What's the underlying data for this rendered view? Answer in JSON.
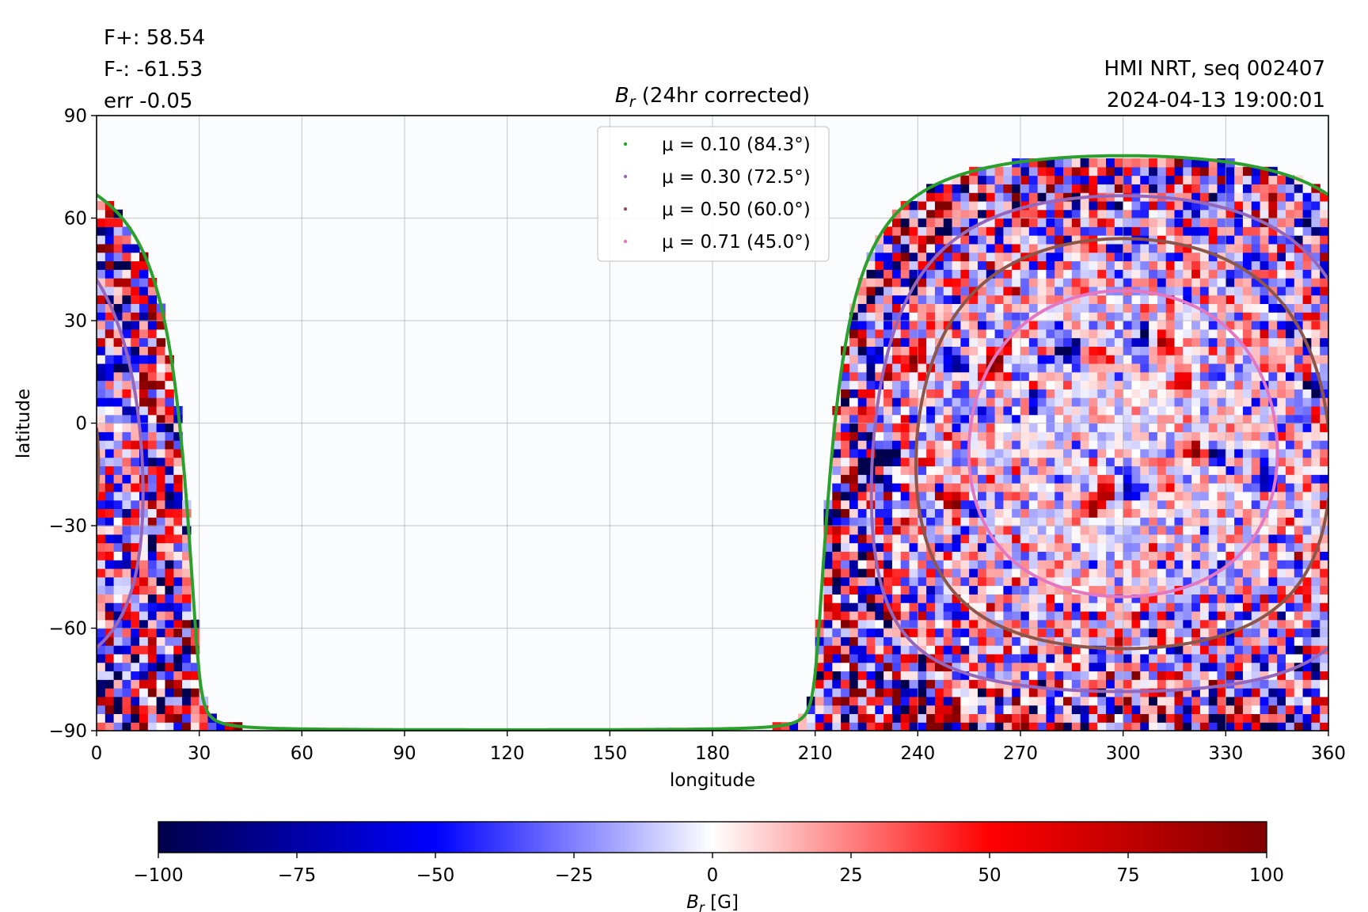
{
  "stats": {
    "f_plus": "F+: 58.54",
    "f_minus": "F-: -61.53",
    "err": "err -0.05"
  },
  "source": {
    "instrument": "HMI NRT, seq 002407",
    "timestamp": "2024-04-13 19:00:01"
  },
  "chart_data": {
    "type": "heatmap",
    "title_symbol": "B",
    "title_sub": "r",
    "title_rest": " (24hr corrected)",
    "xlabel": "longitude",
    "ylabel": "latitude",
    "xlim": [
      0,
      360
    ],
    "ylim": [
      -90,
      90
    ],
    "xticks": [
      0,
      30,
      60,
      90,
      120,
      150,
      180,
      210,
      240,
      270,
      300,
      330,
      360
    ],
    "yticks": [
      -90,
      -60,
      -30,
      0,
      30,
      60,
      90
    ],
    "xtick_labels": [
      "0",
      "30",
      "60",
      "90",
      "120",
      "150",
      "180",
      "210",
      "240",
      "270",
      "300",
      "330",
      "360"
    ],
    "ytick_labels": [
      "−90",
      "−60",
      "−30",
      "0",
      "30",
      "60",
      "90"
    ],
    "grid": true,
    "legend_position": "top-center",
    "disk_center_longitude": 300,
    "disk_center_latitude": -6,
    "contours": [
      {
        "label": "μ = 0.10 (84.3°)",
        "mu": 0.1,
        "angle_deg": 84.3,
        "color": "#2ca02c"
      },
      {
        "label": "μ = 0.30 (72.5°)",
        "mu": 0.3,
        "angle_deg": 72.5,
        "color": "#9467bd"
      },
      {
        "label": "μ = 0.50 (60.0°)",
        "mu": 0.5,
        "angle_deg": 60.0,
        "color": "#8c564b"
      },
      {
        "label": "μ = 0.71 (45.0°)",
        "mu": 0.71,
        "angle_deg": 45.0,
        "color": "#e377c2"
      }
    ],
    "colorbar": {
      "min": -100,
      "max": 100,
      "ticks": [
        -100,
        -75,
        -50,
        -25,
        0,
        25,
        50,
        75,
        100
      ],
      "tick_labels": [
        "−100",
        "−75",
        "−50",
        "−25",
        "0",
        "25",
        "50",
        "75",
        "100"
      ],
      "label_symbol": "B",
      "label_sub": "r",
      "label_rest": " [G]",
      "colormap": "seismic"
    },
    "active_regions": [
      {
        "lon": 18,
        "lat": 22,
        "B": 90
      },
      {
        "lon": 8,
        "lat": 18,
        "B": -90
      },
      {
        "lon": 2,
        "lat": 8,
        "B": -100
      },
      {
        "lon": 3,
        "lat": 9,
        "B": 80
      },
      {
        "lon": 22,
        "lat": -30,
        "B": 70
      },
      {
        "lon": 17,
        "lat": 12,
        "B": 60
      },
      {
        "lon": 220,
        "lat": 25,
        "B": 100
      },
      {
        "lon": 226,
        "lat": 22,
        "B": -90
      },
      {
        "lon": 238,
        "lat": 18,
        "B": 80
      },
      {
        "lon": 250,
        "lat": 19,
        "B": -80
      },
      {
        "lon": 262,
        "lat": 17,
        "B": 85
      },
      {
        "lon": 220,
        "lat": -15,
        "B": 100
      },
      {
        "lon": 226,
        "lat": -13,
        "B": -100
      },
      {
        "lon": 232,
        "lat": -9,
        "B": -90
      },
      {
        "lon": 250,
        "lat": -23,
        "B": 90
      },
      {
        "lon": 256,
        "lat": -25,
        "B": -70
      },
      {
        "lon": 285,
        "lat": 21,
        "B": -90
      },
      {
        "lon": 292,
        "lat": 20,
        "B": 80
      },
      {
        "lon": 305,
        "lat": 25,
        "B": -80
      },
      {
        "lon": 312,
        "lat": 24,
        "B": 90
      },
      {
        "lon": 318,
        "lat": 13,
        "B": 70
      },
      {
        "lon": 322,
        "lat": -8,
        "B": 90
      },
      {
        "lon": 327,
        "lat": -9,
        "B": -80
      },
      {
        "lon": 295,
        "lat": -20,
        "B": 85
      },
      {
        "lon": 302,
        "lat": -18,
        "B": -80
      },
      {
        "lon": 275,
        "lat": 5,
        "B": -60
      },
      {
        "lon": 352,
        "lat": 27,
        "B": -70
      },
      {
        "lon": 356,
        "lat": 10,
        "B": -70
      },
      {
        "lon": 343,
        "lat": -16,
        "B": -60
      },
      {
        "lon": 290,
        "lat": -25,
        "B": 60
      }
    ]
  }
}
